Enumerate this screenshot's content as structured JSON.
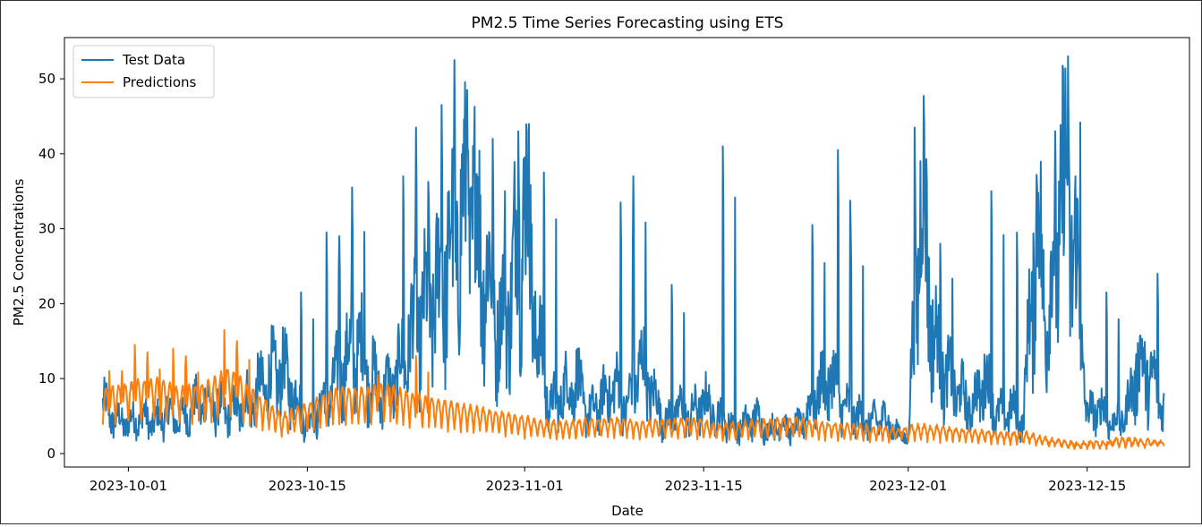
{
  "chart_data": {
    "type": "line",
    "title": "PM2.5 Time Series Forecasting using ETS",
    "xlabel": "Date",
    "ylabel": "PM2.5 Concentrations",
    "xlim": [
      "2023-09-26",
      "2023-12-23"
    ],
    "ylim": [
      -1.8,
      55.5
    ],
    "x_ticks": [
      "2023-10-01",
      "2023-10-15",
      "2023-11-01",
      "2023-11-15",
      "2023-12-01",
      "2023-12-15"
    ],
    "y_ticks": [
      0,
      10,
      20,
      30,
      40,
      50
    ],
    "grid": false,
    "legend_position": "top-left",
    "series": [
      {
        "name": "Test Data",
        "color": "#1f77b4",
        "points": [
          [
            "2023-09-29",
            6.5
          ],
          [
            "2023-09-30",
            4.5
          ],
          [
            "2023-10-01",
            4.0
          ],
          [
            "2023-10-02",
            5.0
          ],
          [
            "2023-10-03",
            4.0
          ],
          [
            "2023-10-04",
            5.5
          ],
          [
            "2023-10-05",
            4.5
          ],
          [
            "2023-10-06",
            6.0
          ],
          [
            "2023-10-07",
            7.0
          ],
          [
            "2023-10-08",
            6.0
          ],
          [
            "2023-10-09",
            5.5
          ],
          [
            "2023-10-10",
            6.5
          ],
          [
            "2023-10-11",
            8.0
          ],
          [
            "2023-10-12",
            10.0
          ],
          [
            "2023-10-13",
            11.0
          ],
          [
            "2023-10-14",
            8.0
          ],
          [
            "2023-10-15",
            4.0
          ],
          [
            "2023-10-16",
            6.0
          ],
          [
            "2023-10-17",
            9.0
          ],
          [
            "2023-10-18",
            12.0
          ],
          [
            "2023-10-19",
            14.0
          ],
          [
            "2023-10-20",
            10.0
          ],
          [
            "2023-10-21",
            8.0
          ],
          [
            "2023-10-22",
            10.0
          ],
          [
            "2023-10-23",
            15.0
          ],
          [
            "2023-10-24",
            18.0
          ],
          [
            "2023-10-25",
            20.0
          ],
          [
            "2023-10-26",
            25.0
          ],
          [
            "2023-10-27",
            30.0
          ],
          [
            "2023-10-28",
            32.0
          ],
          [
            "2023-10-29",
            24.0
          ],
          [
            "2023-10-30",
            16.0
          ],
          [
            "2023-10-31",
            22.0
          ],
          [
            "2023-11-01",
            34.0
          ],
          [
            "2023-11-02",
            15.0
          ],
          [
            "2023-11-03",
            6.0
          ],
          [
            "2023-11-04",
            8.0
          ],
          [
            "2023-11-05",
            10.0
          ],
          [
            "2023-11-06",
            5.0
          ],
          [
            "2023-11-07",
            7.0
          ],
          [
            "2023-11-08",
            9.0
          ],
          [
            "2023-11-09",
            6.0
          ],
          [
            "2023-11-10",
            12.0
          ],
          [
            "2023-11-11",
            8.0
          ],
          [
            "2023-11-12",
            4.0
          ],
          [
            "2023-11-13",
            6.0
          ],
          [
            "2023-11-14",
            5.0
          ],
          [
            "2023-11-15",
            7.0
          ],
          [
            "2023-11-16",
            5.0
          ],
          [
            "2023-11-17",
            4.0
          ],
          [
            "2023-11-18",
            3.5
          ],
          [
            "2023-11-19",
            5.0
          ],
          [
            "2023-11-20",
            3.0
          ],
          [
            "2023-11-21",
            4.0
          ],
          [
            "2023-11-22",
            3.0
          ],
          [
            "2023-11-23",
            5.0
          ],
          [
            "2023-11-24",
            8.0
          ],
          [
            "2023-11-25",
            10.0
          ],
          [
            "2023-11-26",
            6.0
          ],
          [
            "2023-11-27",
            5.0
          ],
          [
            "2023-11-28",
            4.0
          ],
          [
            "2023-11-29",
            5.0
          ],
          [
            "2023-11-30",
            3.0
          ],
          [
            "2023-12-01",
            2.0
          ],
          [
            "2023-12-02",
            35.0
          ],
          [
            "2023-12-03",
            15.0
          ],
          [
            "2023-12-04",
            10.0
          ],
          [
            "2023-12-05",
            8.0
          ],
          [
            "2023-12-06",
            6.0
          ],
          [
            "2023-12-07",
            10.0
          ],
          [
            "2023-12-08",
            5.0
          ],
          [
            "2023-12-09",
            6.0
          ],
          [
            "2023-12-10",
            4.0
          ],
          [
            "2023-12-11",
            30.0
          ],
          [
            "2023-12-12",
            18.0
          ],
          [
            "2023-12-13",
            35.0
          ],
          [
            "2023-12-14",
            28.0
          ],
          [
            "2023-12-15",
            5.0
          ],
          [
            "2023-12-16",
            6.0
          ],
          [
            "2023-12-17",
            4.0
          ],
          [
            "2023-12-18",
            5.0
          ],
          [
            "2023-12-19",
            12.0
          ],
          [
            "2023-12-20",
            10.0
          ],
          [
            "2023-12-21",
            6.5
          ]
        ],
        "spikes": [
          [
            "2023-10-15",
            21.5
          ],
          [
            "2023-10-17",
            29.5
          ],
          [
            "2023-10-18",
            29.0
          ],
          [
            "2023-10-19",
            35.5
          ],
          [
            "2023-10-23",
            37.0
          ],
          [
            "2023-10-24",
            43.5
          ],
          [
            "2023-10-25",
            34.0
          ],
          [
            "2023-10-26",
            46.5
          ],
          [
            "2023-10-27",
            52.5
          ],
          [
            "2023-10-28",
            48.5
          ],
          [
            "2023-10-30",
            42.0
          ],
          [
            "2023-11-01",
            43.0
          ],
          [
            "2023-11-03",
            37.5
          ],
          [
            "2023-11-09",
            33.5
          ],
          [
            "2023-11-10",
            37.0
          ],
          [
            "2023-11-13",
            22.5
          ],
          [
            "2023-11-17",
            41.0
          ],
          [
            "2023-11-24",
            30.5
          ],
          [
            "2023-11-26",
            40.5
          ],
          [
            "2023-11-27",
            30.0
          ],
          [
            "2023-12-02",
            43.5
          ],
          [
            "2023-12-04",
            28.0
          ],
          [
            "2023-12-08",
            35.0
          ],
          [
            "2023-12-10",
            29.5
          ],
          [
            "2023-12-13",
            43.0
          ],
          [
            "2023-12-14",
            53.0
          ],
          [
            "2023-12-17",
            21.5
          ],
          [
            "2023-12-21",
            24.0
          ]
        ]
      },
      {
        "name": "Predictions",
        "color": "#ff7f0e",
        "points": [
          [
            "2023-09-29",
            6.0
          ],
          [
            "2023-10-01",
            6.5
          ],
          [
            "2023-10-03",
            7.0
          ],
          [
            "2023-10-05",
            6.0
          ],
          [
            "2023-10-07",
            6.5
          ],
          [
            "2023-10-09",
            8.0
          ],
          [
            "2023-10-11",
            5.5
          ],
          [
            "2023-10-13",
            3.5
          ],
          [
            "2023-10-15",
            4.5
          ],
          [
            "2023-10-17",
            6.0
          ],
          [
            "2023-10-19",
            6.0
          ],
          [
            "2023-10-21",
            6.5
          ],
          [
            "2023-10-23",
            5.5
          ],
          [
            "2023-10-25",
            5.0
          ],
          [
            "2023-10-27",
            4.5
          ],
          [
            "2023-10-29",
            4.0
          ],
          [
            "2023-10-31",
            3.5
          ],
          [
            "2023-11-02",
            3.0
          ],
          [
            "2023-11-04",
            2.8
          ],
          [
            "2023-11-06",
            3.0
          ],
          [
            "2023-11-08",
            3.2
          ],
          [
            "2023-11-10",
            2.8
          ],
          [
            "2023-11-12",
            3.0
          ],
          [
            "2023-11-14",
            3.2
          ],
          [
            "2023-11-16",
            2.5
          ],
          [
            "2023-11-18",
            2.8
          ],
          [
            "2023-11-20",
            3.0
          ],
          [
            "2023-11-22",
            3.2
          ],
          [
            "2023-11-24",
            2.8
          ],
          [
            "2023-11-26",
            2.6
          ],
          [
            "2023-11-28",
            2.4
          ],
          [
            "2023-11-30",
            2.2
          ],
          [
            "2023-12-02",
            2.5
          ],
          [
            "2023-12-04",
            2.3
          ],
          [
            "2023-12-06",
            2.0
          ],
          [
            "2023-12-08",
            1.8
          ],
          [
            "2023-12-10",
            1.8
          ],
          [
            "2023-12-12",
            1.2
          ],
          [
            "2023-12-14",
            0.8
          ],
          [
            "2023-12-16",
            0.9
          ],
          [
            "2023-12-18",
            1.2
          ],
          [
            "2023-12-20",
            1.0
          ],
          [
            "2023-12-21",
            1.0
          ]
        ],
        "spikes": [
          [
            "2023-09-30",
            11.0
          ],
          [
            "2023-10-01",
            11.0
          ],
          [
            "2023-10-02",
            14.5
          ],
          [
            "2023-10-03",
            13.5
          ],
          [
            "2023-10-05",
            14.0
          ],
          [
            "2023-10-06",
            13.0
          ],
          [
            "2023-10-09",
            16.5
          ],
          [
            "2023-10-10",
            15.0
          ],
          [
            "2023-10-21",
            10.5
          ],
          [
            "2023-10-24",
            13.0
          ]
        ]
      }
    ]
  }
}
